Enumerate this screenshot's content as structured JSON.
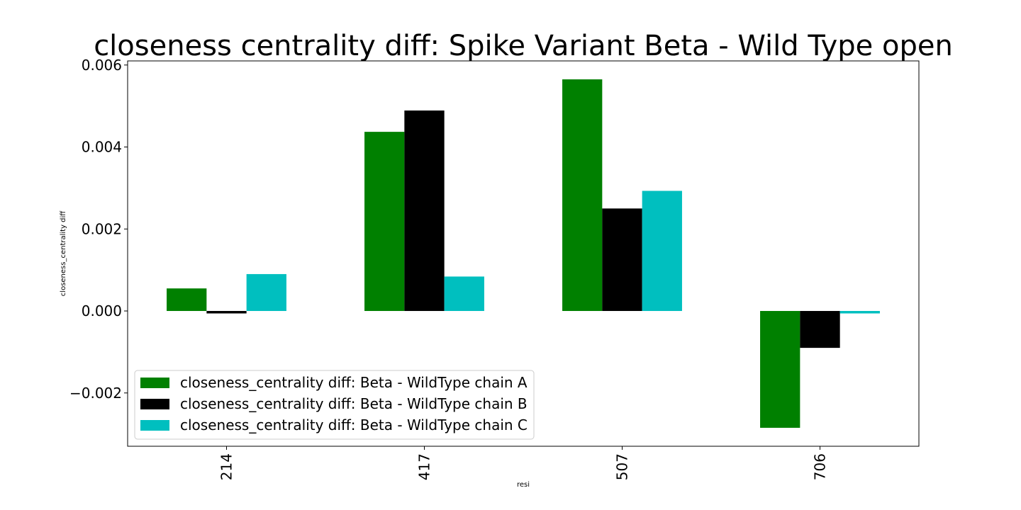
{
  "chart_data": {
    "type": "bar",
    "title": "closeness centrality diff: Spike Variant Beta - Wild Type open",
    "xlabel": "resi",
    "ylabel": "closeness_centrality diff",
    "categories": [
      "214",
      "417",
      "507",
      "706"
    ],
    "series": [
      {
        "name": "closeness_centrality diff: Beta - WildType chain A",
        "color": "#008000",
        "values": [
          0.00055,
          0.00437,
          0.00565,
          -0.00285
        ]
      },
      {
        "name": "closeness_centrality diff: Beta - WildType chain B",
        "color": "#000000",
        "values": [
          -6e-05,
          0.00489,
          0.0025,
          -0.0009
        ]
      },
      {
        "name": "closeness_centrality diff: Beta - WildType chain C",
        "color": "#00bfbf",
        "values": [
          0.0009,
          0.00084,
          0.00293,
          -6e-05
        ]
      }
    ],
    "ylim": [
      -0.0033,
      0.0061
    ],
    "yticks": [
      -0.002,
      0.0,
      0.002,
      0.004,
      0.006
    ],
    "ytick_labels": [
      "−0.002",
      "0.000",
      "0.002",
      "0.004",
      "0.006"
    ],
    "grid": false,
    "legend_position": "lower-left"
  }
}
